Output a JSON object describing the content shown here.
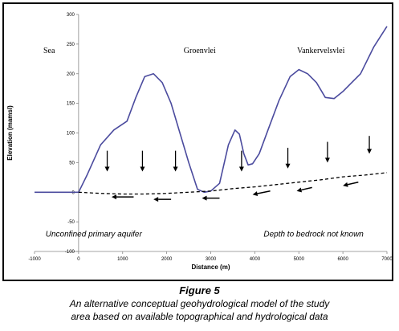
{
  "chart_data": {
    "type": "line",
    "xlabel": "Distance (m)",
    "ylabel": "Elevation (mamsl)",
    "xlim": [
      -1000,
      7000
    ],
    "ylim": [
      -100,
      300
    ],
    "xticks": [
      -1000,
      0,
      1000,
      2000,
      3000,
      4000,
      5000,
      6000,
      7000
    ],
    "yticks": [
      -100,
      -50,
      0,
      50,
      100,
      150,
      200,
      250,
      300
    ],
    "grid": false,
    "series": [
      {
        "name": "",
        "color": "#4b4b9e",
        "style": "solid",
        "x": [
          -1000,
          -700,
          -300,
          0,
          200,
          500,
          800,
          1100,
          1300,
          1500,
          1700,
          1900,
          2100,
          2300,
          2500,
          2700,
          2850,
          3000,
          3200,
          3400,
          3550,
          3650,
          3750,
          3850,
          3950,
          4100,
          4300,
          4550,
          4800,
          5000,
          5200,
          5400,
          5600,
          5800,
          6000,
          6200,
          6400,
          6700,
          7000
        ],
        "y": [
          0,
          0,
          0,
          0,
          30,
          80,
          105,
          120,
          160,
          195,
          200,
          185,
          150,
          100,
          50,
          5,
          0,
          2,
          15,
          80,
          105,
          98,
          65,
          46,
          48,
          65,
          105,
          155,
          195,
          207,
          200,
          185,
          160,
          158,
          170,
          185,
          200,
          245,
          280
        ]
      },
      {
        "name": "",
        "color": "#000000",
        "style": "dashed",
        "x": [
          0,
          500,
          1000,
          1500,
          2000,
          2500,
          3000,
          3500,
          4000,
          4500,
          5000,
          5500,
          6000,
          6500,
          7000
        ],
        "y": [
          0,
          -2,
          -3,
          -3,
          -2,
          0,
          2,
          6,
          9,
          13,
          17,
          21,
          26,
          29,
          33
        ]
      }
    ],
    "arrows": {
      "down_x": [
        650,
        1450,
        2200,
        3700,
        4750,
        5650,
        6600
      ],
      "down_y_top": [
        70,
        70,
        70,
        70,
        75,
        85,
        95
      ],
      "down_y_bottom": [
        35,
        35,
        35,
        35,
        40,
        50,
        65
      ],
      "left": [
        {
          "x1": 1250,
          "x2": 750,
          "y1": -8,
          "y2": -8
        },
        {
          "x1": 2100,
          "x2": 1700,
          "y1": -12,
          "y2": -12
        },
        {
          "x1": 3200,
          "x2": 2800,
          "y1": -10,
          "y2": -10
        },
        {
          "x1": 4350,
          "x2": 3950,
          "y1": 2,
          "y2": -4
        },
        {
          "x1": 5300,
          "x2": 4950,
          "y1": 8,
          "y2": 2
        },
        {
          "x1": 6350,
          "x2": 6000,
          "y1": 17,
          "y2": 11
        }
      ]
    },
    "annotations": {
      "sea": "Sea",
      "groenvlei": "Groenvlei",
      "vankervelsvlei": "Vankervelsvlei",
      "unconfined": "Unconfined primary aquifer",
      "bedrock": "Depth to bedrock not known"
    }
  },
  "caption": {
    "figure_label": "Figure 5",
    "text": "An alternative conceptual geohydrological model of the study\narea based on available topographical and hydrological data"
  }
}
